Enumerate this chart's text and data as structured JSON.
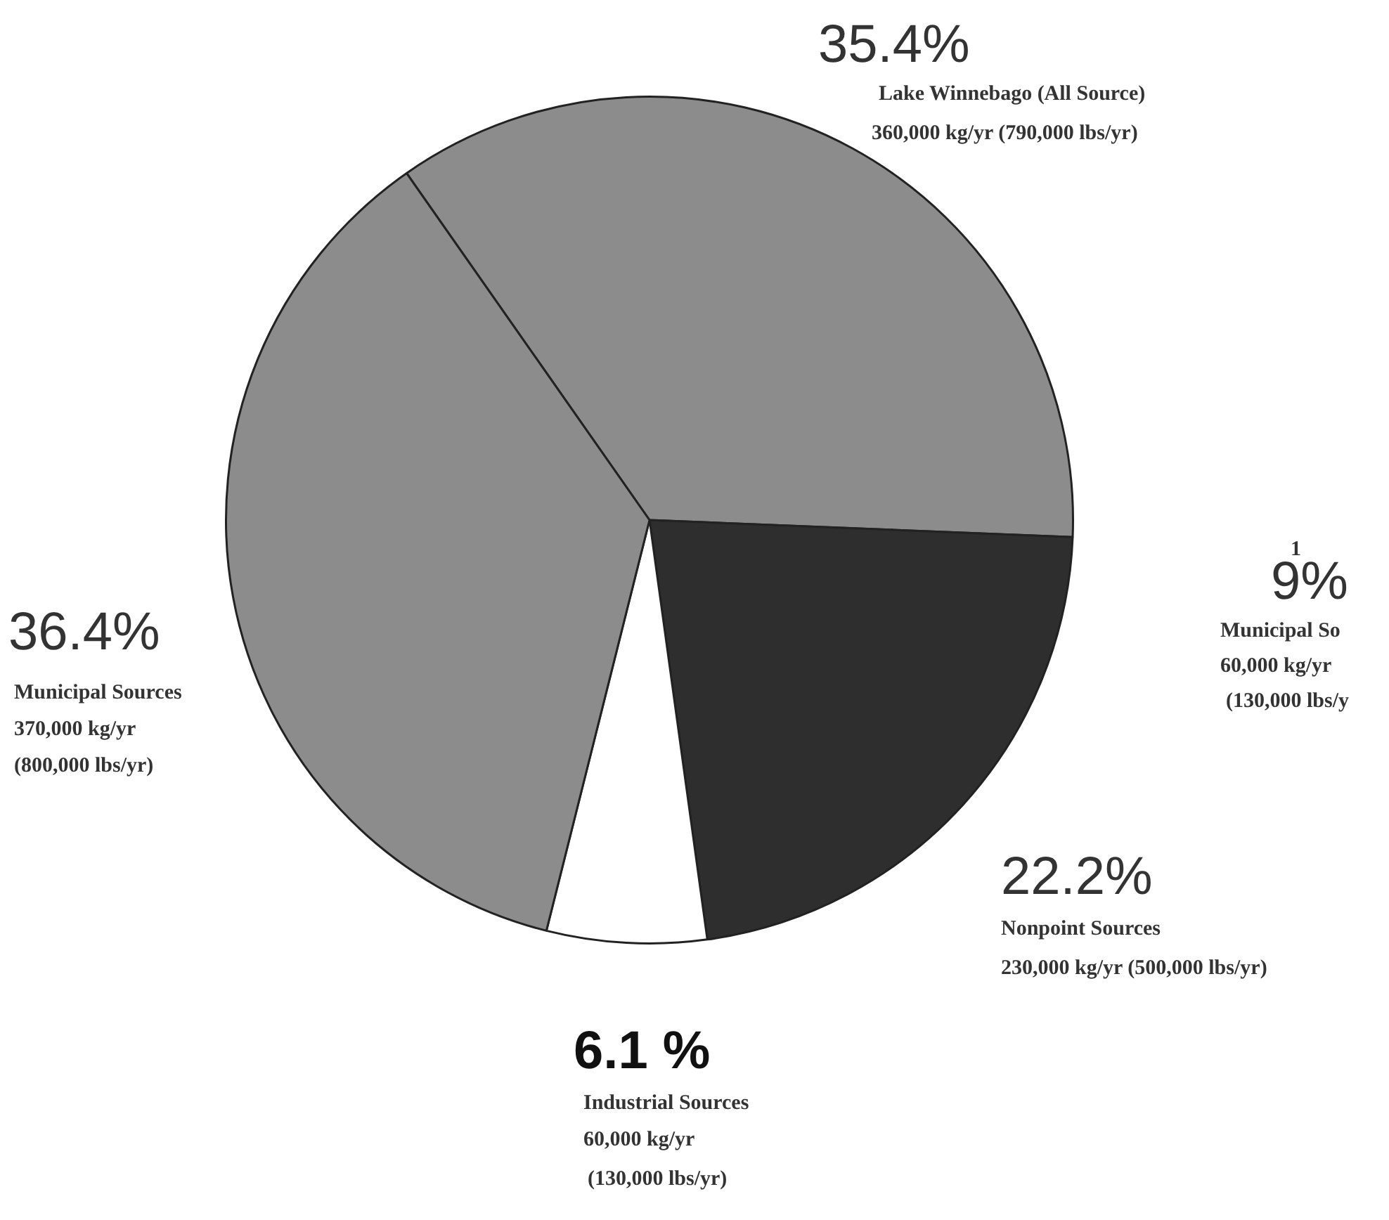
{
  "chart_data": {
    "type": "pie",
    "categories": [
      "Lake Winnebago (All Source)",
      "Nonpoint Sources",
      "Industrial Sources",
      "Municipal Sources"
    ],
    "values": [
      35.4,
      22.2,
      6.1,
      36.4
    ],
    "value_labels": [
      "35.4%",
      "22.2%",
      "6.1 %",
      "36.4%"
    ],
    "colors": [
      "#8c8c8c",
      "#2e2e2e",
      "#ffffff",
      "#8c8c8c"
    ],
    "legend": false,
    "annotations": [
      "360,000 kg/yr (790,000 lbs/yr)",
      "230,000 kg/yr (500,000 lbs/yr)",
      "60,000 kg/yr",
      "(130,000 lbs/yr)",
      "370,000 kg/yr",
      "(800,000 lbs/yr)",
      "1",
      "9%",
      "Municipal So",
      "60,000 kg/yr",
      "(130,000 lbs/y"
    ]
  }
}
